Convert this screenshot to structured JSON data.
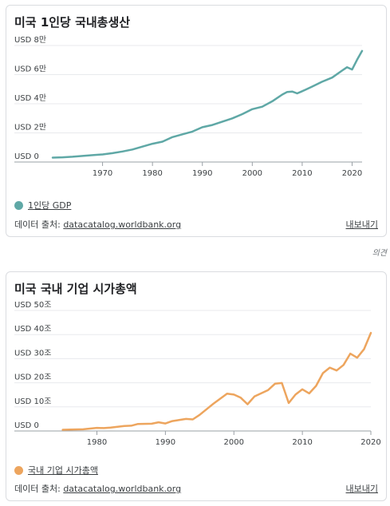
{
  "cards": [
    {
      "title": "미국 1인당 국내총생산",
      "legend": "1인당 GDP",
      "source_prefix": "데이터 출처:",
      "source_link": "datacatalog.worldbank.org",
      "export": "내보내기",
      "color": "#5fa8a6"
    },
    {
      "title": "미국 국내 기업 시가총액",
      "legend": "국내 기업 시가총액",
      "source_prefix": "데이터 출처:",
      "source_link": "datacatalog.worldbank.org",
      "export": "내보내기",
      "color": "#eda55e"
    }
  ],
  "feedback": "의견",
  "chart_data": [
    {
      "type": "line",
      "title": "미국 1인당 국내총생산",
      "series": [
        {
          "name": "1인당 GDP",
          "color": "#5fa8a6",
          "x": [
            1960,
            1962,
            1964,
            1966,
            1968,
            1970,
            1972,
            1974,
            1976,
            1978,
            1980,
            1982,
            1984,
            1986,
            1988,
            1990,
            1992,
            1994,
            1996,
            1998,
            2000,
            2002,
            2004,
            2006,
            2007,
            2008,
            2009,
            2010,
            2012,
            2014,
            2016,
            2018,
            2019,
            2020,
            2021,
            2022
          ],
          "values": [
            3000,
            3250,
            3600,
            4150,
            4700,
            5200,
            6100,
            7250,
            8600,
            10550,
            12550,
            13970,
            17100,
            19000,
            20900,
            23900,
            25400,
            27700,
            30000,
            32900,
            36300,
            38000,
            41700,
            46300,
            48100,
            48400,
            47100,
            48600,
            51800,
            55100,
            58000,
            62800,
            65100,
            63500,
            70200,
            76300
          ]
        }
      ],
      "yticks": [
        "USD 0",
        "USD 2만",
        "USD 4만",
        "USD 6만",
        "USD 8만"
      ],
      "ytick_values": [
        0,
        20000,
        40000,
        60000,
        80000
      ],
      "xticks": [
        1970,
        1980,
        1990,
        2000,
        2010,
        2020
      ],
      "xlim": [
        1960,
        2022
      ],
      "ylim": [
        0,
        80000
      ],
      "grid": true,
      "legend_position": "bottom"
    },
    {
      "type": "line",
      "title": "미국 국내 기업 시가총액",
      "series": [
        {
          "name": "국내 기업 시가총액",
          "color": "#eda55e",
          "x": [
            1975,
            1976,
            1978,
            1980,
            1981,
            1982,
            1984,
            1985,
            1986,
            1988,
            1989,
            1990,
            1991,
            1993,
            1994,
            1995,
            1997,
            1999,
            2000,
            2001,
            2002,
            2003,
            2005,
            2006,
            2007,
            2008,
            2009,
            2010,
            2011,
            2012,
            2013,
            2014,
            2015,
            2016,
            2017,
            2018,
            2019,
            2020
          ],
          "values": [
            0.5,
            0.6,
            0.7,
            1.3,
            1.2,
            1.4,
            2.1,
            2.2,
            2.9,
            3.0,
            3.6,
            3.1,
            4.1,
            5.0,
            4.8,
            6.7,
            11.3,
            15.5,
            15.1,
            13.8,
            11.1,
            14.3,
            17.0,
            19.6,
            19.9,
            11.6,
            15.1,
            17.3,
            15.6,
            18.7,
            24.0,
            26.3,
            25.1,
            27.4,
            32.1,
            30.4,
            33.9,
            40.7
          ]
        }
      ],
      "yticks": [
        "USD 0",
        "USD 10조",
        "USD 20조",
        "USD 30조",
        "USD 40조",
        "USD 50조"
      ],
      "ytick_values": [
        0,
        10,
        20,
        30,
        40,
        50
      ],
      "xticks": [
        1980,
        1990,
        2000,
        2010,
        2020
      ],
      "xlim": [
        1974,
        2020
      ],
      "ylim": [
        0,
        50
      ],
      "grid": true,
      "legend_position": "bottom"
    }
  ]
}
